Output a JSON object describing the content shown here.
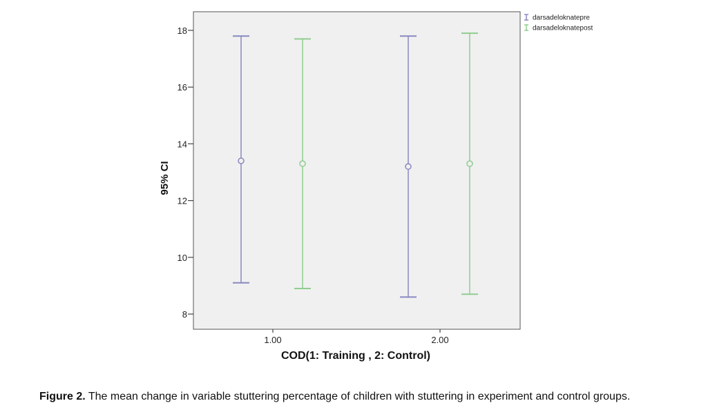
{
  "chart_data": {
    "type": "errorbar",
    "ylabel": "95% CI",
    "xlabel": "COD(1: Training , 2: Control)",
    "ylim": [
      7.7,
      18.6
    ],
    "yticks": [
      8,
      10,
      12,
      14,
      16,
      18
    ],
    "categories": [
      "1.00",
      "2.00"
    ],
    "legend_position": "top-right",
    "grid": false,
    "series": [
      {
        "name": "darsadeloknatepre",
        "color": "#8888c0",
        "mean": [
          13.4,
          13.2
        ],
        "lower": [
          9.1,
          8.6
        ],
        "upper": [
          17.8,
          17.8
        ]
      },
      {
        "name": "darsadeloknatepost",
        "color": "#8fcd8f",
        "mean": [
          13.3,
          13.3
        ],
        "lower": [
          8.9,
          8.7
        ],
        "upper": [
          17.7,
          17.9
        ]
      }
    ]
  },
  "caption": {
    "label": "Figure 2.",
    "text": " The mean change in variable stuttering percentage of children with stuttering in experiment and control groups."
  }
}
